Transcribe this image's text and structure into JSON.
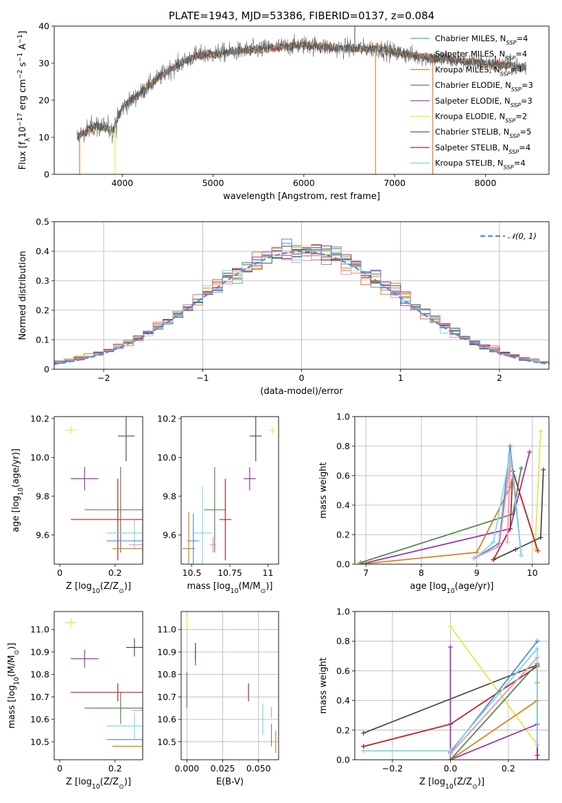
{
  "colors": {
    "Chabrier MILES": "#5aa0a0",
    "Salpeter MILES": "#e46a2a",
    "Kroupa MILES": "#d9801e",
    "Chabrier ELODIE": "#4f8a4f",
    "Salpeter ELODIE": "#9a33b3",
    "Kroupa ELODIE": "#e6e64a",
    "Chabrier STELIB": "#4d4d4d",
    "Salpeter STELIB": "#b22222",
    "Kroupa STELIB": "#7fd8e0",
    "model_extra_blue": "#5588dd",
    "model_extra_pink": "#f08fb0",
    "normal_dist": "#5b87d6",
    "grid": "#b0b0b0"
  },
  "chart_data": [
    {
      "id": "spectrum",
      "type": "line",
      "title": "PLATE=1943, MJD=53386, FIBERID=0137, z=0.084",
      "xlabel": "wavelength [Angstrom, rest frame]",
      "ylabel": "Flux [f$_\\lambda$10$^{-17}$ erg cm$^{-2}$ s$^{-1}$ A$^{-1}$]",
      "ylabel_parts": {
        "pre": "Flux [f",
        "sub": "λ",
        "mid": "10",
        "sup1": "−17",
        "mid2": " erg cm",
        "sup2": "−2",
        "mid3": " s",
        "sup3": "−1",
        "mid4": " A",
        "sup4": "−1",
        "post": "]"
      },
      "xlim": [
        3250,
        8700
      ],
      "ylim": [
        0,
        40
      ],
      "xticks": [
        4000,
        5000,
        6000,
        7000,
        8000
      ],
      "yticks": [
        0,
        10,
        20,
        30,
        40
      ],
      "grid": false,
      "legend_position": "upper right",
      "legend": [
        {
          "name": "Chabrier MILES",
          "nssp": "4"
        },
        {
          "name": "Salpeter MILES",
          "nssp": "4"
        },
        {
          "name": "Kroupa MILES",
          "nssp": "4"
        },
        {
          "name": "Chabrier ELODIE",
          "nssp": "3"
        },
        {
          "name": "Salpeter ELODIE",
          "nssp": "3"
        },
        {
          "name": "Kroupa ELODIE",
          "nssp": "2"
        },
        {
          "name": "Chabrier STELIB",
          "nssp": "5"
        },
        {
          "name": "Salpeter STELIB",
          "nssp": "4"
        },
        {
          "name": "Kroupa STELIB",
          "nssp": "4"
        }
      ],
      "nssp_label": "N",
      "nssp_sub": "SSP",
      "continuum_knots": {
        "x": [
          3500,
          3700,
          3900,
          4000,
          4200,
          4500,
          4800,
          5200,
          5600,
          6000,
          6400,
          6800,
          7200,
          7600,
          8000,
          8400
        ],
        "y": [
          10,
          13,
          12,
          18,
          22,
          28,
          32,
          33,
          34,
          35,
          34,
          34,
          32,
          31,
          30,
          29
        ]
      },
      "dropouts": [
        {
          "x": 3530,
          "series": "Salpeter MILES"
        },
        {
          "x": 3920,
          "series": "Kroupa ELODIE"
        },
        {
          "x": 6790,
          "series": "Kroupa MILES"
        },
        {
          "x": 7420,
          "series": "Salpeter MILES"
        }
      ],
      "emission_line": {
        "x": 6563,
        "y": 40
      }
    },
    {
      "id": "residuals",
      "type": "histogram",
      "xlabel": "(data-model)/error",
      "ylabel": "Normed distribution",
      "xlim": [
        -2.5,
        2.5
      ],
      "ylim": [
        0,
        0.5
      ],
      "xticks": [
        -2,
        -1,
        0,
        1,
        2
      ],
      "yticks": [
        0.0,
        0.1,
        0.2,
        0.3,
        0.4,
        0.5
      ],
      "grid": true,
      "legend_position": "upper right",
      "legend": [
        {
          "name": "𝒩(0, 1)"
        }
      ],
      "bin_width": 0.1
    },
    {
      "id": "age_vs_z",
      "type": "errorbar",
      "xlabel": "Z [log$_{10}$(Z/Z$_\\odot$)]",
      "ylabel": "age  [log$_{10}$(age/yr)]",
      "xlim": [
        -0.02,
        0.3
      ],
      "ylim": [
        9.45,
        10.21
      ],
      "xticks": [
        0.0,
        0.2
      ],
      "yticks": [
        9.6,
        9.8,
        10.0,
        10.2
      ],
      "grid": false,
      "points": [
        {
          "series": "Kroupa ELODIE",
          "x": 0.04,
          "y": 10.14,
          "xerr": 0.02,
          "yerr": 0.02
        },
        {
          "series": "Chabrier STELIB",
          "x": 0.24,
          "y": 10.11,
          "xerr": 0.03,
          "yerr": 0.13
        },
        {
          "series": "Salpeter ELODIE",
          "x": 0.09,
          "y": 9.89,
          "xerr": 0.05,
          "yerr": 0.06
        },
        {
          "series": "Chabrier ELODIE",
          "x": 0.22,
          "y": 9.73,
          "xerr": 0.13,
          "yerr": 0.22
        },
        {
          "series": "Salpeter STELIB",
          "x": 0.21,
          "y": 9.68,
          "xerr": 0.17,
          "yerr": 0.21
        },
        {
          "series": "Kroupa STELIB",
          "x": 0.27,
          "y": 9.61,
          "xerr": 0.1,
          "yerr": 0.08
        },
        {
          "series": "model_extra_blue",
          "x": 0.3,
          "y": 9.57,
          "xerr": 0.13,
          "yerr": 0.18
        },
        {
          "series": "model_extra_pink",
          "x": 0.3,
          "y": 9.55,
          "xerr": 0.05,
          "yerr": 0.04
        },
        {
          "series": "Kroupa MILES",
          "x": 0.3,
          "y": 9.53,
          "xerr": 0.11,
          "yerr": 0.21
        }
      ]
    },
    {
      "id": "age_vs_mass",
      "type": "errorbar",
      "xlabel": "mass [log$_{10}$(M/M$_\\odot$)]",
      "xlim": [
        10.43,
        11.07
      ],
      "ylim": [
        9.45,
        10.21
      ],
      "xticks": [
        10.5,
        10.75,
        11.0
      ],
      "yticks": [
        9.6,
        9.8,
        10.0,
        10.2
      ],
      "grid": false,
      "points": [
        {
          "series": "Kroupa ELODIE",
          "x": 11.03,
          "y": 10.14,
          "xerr": 0.02,
          "yerr": 0.02
        },
        {
          "series": "Chabrier STELIB",
          "x": 10.92,
          "y": 10.11,
          "xerr": 0.04,
          "yerr": 0.13
        },
        {
          "series": "Salpeter ELODIE",
          "x": 10.88,
          "y": 9.89,
          "xerr": 0.04,
          "yerr": 0.06
        },
        {
          "series": "Chabrier ELODIE",
          "x": 10.65,
          "y": 9.73,
          "xerr": 0.07,
          "yerr": 0.22
        },
        {
          "series": "Salpeter STELIB",
          "x": 10.72,
          "y": 9.68,
          "xerr": 0.04,
          "yerr": 0.21
        },
        {
          "series": "Kroupa STELIB",
          "x": 10.57,
          "y": 9.61,
          "xerr": 0.06,
          "yerr": 0.24
        },
        {
          "series": "model_extra_pink",
          "x": 10.64,
          "y": 9.55,
          "xerr": 0.02,
          "yerr": 0.04
        },
        {
          "series": "model_extra_blue",
          "x": 10.51,
          "y": 9.57,
          "xerr": 0.04,
          "yerr": 0.14
        },
        {
          "series": "Kroupa MILES",
          "x": 10.48,
          "y": 9.53,
          "xerr": 0.04,
          "yerr": 0.19
        }
      ]
    },
    {
      "id": "weight_vs_age",
      "type": "line",
      "xlabel": "age  [log$_{10}$(age/yr)]",
      "ylabel": "mass weight",
      "xlim": [
        6.8,
        10.3
      ],
      "ylim": [
        0,
        1.0
      ],
      "xticks": [
        7,
        8,
        9,
        10
      ],
      "yticks": [
        0.0,
        0.2,
        0.4,
        0.6,
        0.8,
        1.0
      ],
      "grid": true,
      "series": [
        {
          "name": "Chabrier ELODIE",
          "x": [
            6.9,
            9.65,
            9.8
          ],
          "y": [
            0.01,
            0.34,
            0.65
          ]
        },
        {
          "name": "Salpeter ELODIE",
          "x": [
            6.9,
            9.6,
            9.95
          ],
          "y": [
            0.0,
            0.24,
            0.76
          ]
        },
        {
          "name": "Kroupa MILES",
          "x": [
            6.9,
            9.0,
            9.6,
            9.65
          ],
          "y": [
            0.0,
            0.08,
            0.52,
            0.6
          ]
        },
        {
          "name": "Kroupa ELODIE",
          "x": [
            10.05,
            10.15
          ],
          "y": [
            0.1,
            0.9
          ]
        },
        {
          "name": "Chabrier STELIB",
          "x": [
            9.3,
            9.7,
            10.15,
            10.2
          ],
          "y": [
            0.03,
            0.1,
            0.18,
            0.64
          ]
        },
        {
          "name": "Salpeter STELIB",
          "x": [
            9.3,
            9.6,
            9.65,
            10.1
          ],
          "y": [
            0.03,
            0.24,
            0.63,
            0.09
          ]
        },
        {
          "name": "model_extra_blue",
          "x": [
            9.0,
            9.4,
            9.6,
            9.8
          ],
          "y": [
            0.05,
            0.14,
            0.8,
            0.06
          ]
        },
        {
          "name": "model_extra_pink",
          "x": [
            8.95,
            9.4,
            9.6,
            9.55
          ],
          "y": [
            0.04,
            0.12,
            0.69,
            0.15
          ]
        },
        {
          "name": "Kroupa STELIB",
          "x": [
            9.0,
            9.3,
            9.6,
            9.8
          ],
          "y": [
            0.05,
            0.15,
            0.75,
            0.06
          ]
        }
      ]
    },
    {
      "id": "mass_vs_z",
      "type": "errorbar",
      "xlabel": "Z [log$_{10}$(Z/Z$_\\odot$)]",
      "ylabel": "mass [log$_{10}$(M/M$_\\odot$)]",
      "xlim": [
        -0.02,
        0.3
      ],
      "ylim": [
        10.42,
        11.08
      ],
      "xticks": [
        0.0,
        0.2
      ],
      "yticks": [
        10.5,
        10.6,
        10.7,
        10.8,
        10.9,
        11.0
      ],
      "grid": false,
      "points": [
        {
          "series": "Kroupa ELODIE",
          "x": 0.04,
          "y": 11.03,
          "xerr": 0.02,
          "yerr": 0.02
        },
        {
          "series": "Chabrier STELIB",
          "x": 0.27,
          "y": 10.92,
          "xerr": 0.03,
          "yerr": 0.04
        },
        {
          "series": "Salpeter ELODIE",
          "x": 0.09,
          "y": 10.87,
          "xerr": 0.05,
          "yerr": 0.04
        },
        {
          "series": "Chabrier ELODIE",
          "x": 0.22,
          "y": 10.65,
          "xerr": 0.13,
          "yerr": 0.07
        },
        {
          "series": "Salpeter STELIB",
          "x": 0.21,
          "y": 10.72,
          "xerr": 0.17,
          "yerr": 0.04
        },
        {
          "series": "Kroupa STELIB",
          "x": 0.27,
          "y": 10.57,
          "xerr": 0.1,
          "yerr": 0.06
        },
        {
          "series": "model_extra_pink",
          "x": 0.3,
          "y": 10.64,
          "xerr": 0.04,
          "yerr": 0.02
        },
        {
          "series": "model_extra_blue",
          "x": 0.3,
          "y": 10.51,
          "xerr": 0.13,
          "yerr": 0.04
        },
        {
          "series": "Kroupa MILES",
          "x": 0.3,
          "y": 10.48,
          "xerr": 0.11,
          "yerr": 0.04
        }
      ]
    },
    {
      "id": "mass_vs_ebv",
      "type": "errorbar",
      "xlabel": "E(B-V)",
      "xlim": [
        -0.004,
        0.064
      ],
      "ylim": [
        10.42,
        11.08
      ],
      "xticks": [
        0.0,
        0.025,
        0.05
      ],
      "xticklabels": [
        "0.000",
        "0.025",
        "0.050"
      ],
      "yticks": [
        10.5,
        10.6,
        10.7,
        10.8,
        10.9,
        11.0
      ],
      "grid": true,
      "points": [
        {
          "series": "Kroupa ELODIE",
          "x": 0.0,
          "y": 11.03,
          "xerr": 0,
          "yerr": 0.03
        },
        {
          "series": "Salpeter ELODIE",
          "x": 0.006,
          "y": 10.89,
          "xerr": 0,
          "yerr": 0.05
        },
        {
          "series": "Chabrier STELIB",
          "x": 0.006,
          "y": 10.9,
          "xerr": 0,
          "yerr": 0.04
        },
        {
          "series": "Chabrier ELODIE",
          "x": 0.0,
          "y": 10.73,
          "xerr": 0,
          "yerr": 0.08
        },
        {
          "series": "Salpeter STELIB",
          "x": 0.043,
          "y": 10.72,
          "xerr": 0,
          "yerr": 0.04
        },
        {
          "series": "Kroupa STELIB",
          "x": 0.053,
          "y": 10.6,
          "xerr": 0,
          "yerr": 0.07
        },
        {
          "series": "model_extra_pink",
          "x": 0.059,
          "y": 10.63,
          "xerr": 0,
          "yerr": 0.025
        },
        {
          "series": "model_extra_blue",
          "x": 0.059,
          "y": 10.53,
          "xerr": 0,
          "yerr": 0.05
        },
        {
          "series": "Kroupa MILES",
          "x": 0.062,
          "y": 10.5,
          "xerr": 0,
          "yerr": 0.05
        }
      ]
    },
    {
      "id": "weight_vs_z",
      "type": "line",
      "xlabel": "Z [log$_{10}$(Z/Z$_\\odot$)]",
      "ylabel": "mass weight",
      "xlim": [
        -0.33,
        0.34
      ],
      "ylim": [
        0,
        1.0
      ],
      "xticks": [
        -0.2,
        0.0,
        0.2
      ],
      "xticklabels": [
        "−0.2",
        "0.0",
        "0.2"
      ],
      "yticks": [
        0.0,
        0.2,
        0.4,
        0.6,
        0.8,
        1.0
      ],
      "grid": true,
      "series": [
        {
          "name": "Chabrier STELIB",
          "x": [
            -0.3,
            0.3,
            0.3
          ],
          "y": [
            0.18,
            0.64,
            0.03
          ]
        },
        {
          "name": "Salpeter STELIB",
          "x": [
            -0.3,
            0.0,
            0.3,
            0.3
          ],
          "y": [
            0.09,
            0.24,
            0.63,
            0.03
          ]
        },
        {
          "name": "Kroupa ELODIE",
          "x": [
            0.0,
            0.3
          ],
          "y": [
            0.9,
            0.1
          ]
        },
        {
          "name": "Salpeter ELODIE",
          "x": [
            0.0,
            0.0,
            0.3,
            0.3
          ],
          "y": [
            0.76,
            0.0,
            0.24,
            0.0
          ]
        },
        {
          "name": "Kroupa MILES",
          "x": [
            0.0,
            0.3,
            0.3
          ],
          "y": [
            0.0,
            0.4,
            0.52
          ]
        },
        {
          "name": "Chabrier ELODIE",
          "x": [
            0.0,
            0.3
          ],
          "y": [
            0.0,
            0.65
          ]
        },
        {
          "name": "model_extra_blue",
          "x": [
            0.0,
            0.3
          ],
          "y": [
            0.05,
            0.8
          ]
        },
        {
          "name": "model_extra_pink",
          "x": [
            0.0,
            0.3
          ],
          "y": [
            0.04,
            0.69
          ]
        },
        {
          "name": "Kroupa STELIB",
          "x": [
            -0.3,
            0.0,
            0.3,
            0.3
          ],
          "y": [
            0.06,
            0.06,
            0.75,
            0.1
          ]
        }
      ]
    }
  ]
}
